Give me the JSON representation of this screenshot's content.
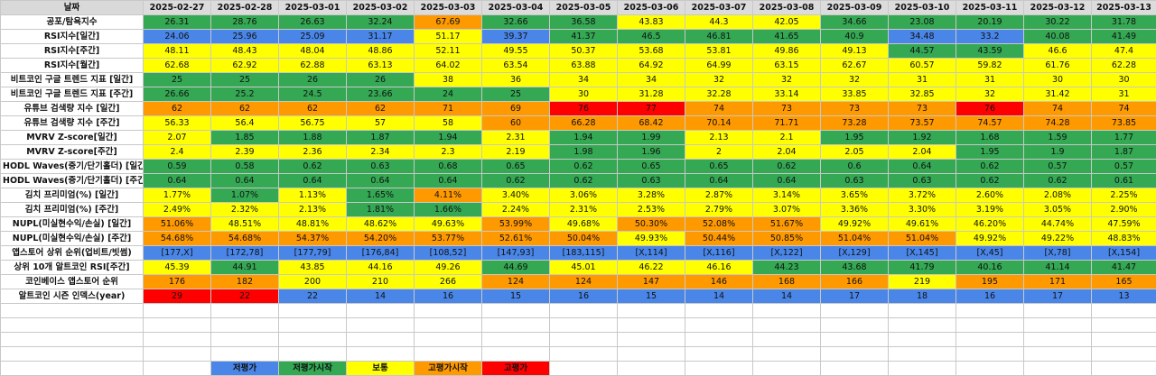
{
  "colors": {
    "blue": "#4a86e8",
    "green": "#34a853",
    "yellow": "#ffff00",
    "orange": "#ff9900",
    "red": "#ff0000"
  },
  "header": {
    "label": "날짜",
    "dates": [
      "2025-02-27",
      "2025-02-28",
      "2025-03-01",
      "2025-03-02",
      "2025-03-03",
      "2025-03-04",
      "2025-03-05",
      "2025-03-06",
      "2025-03-07",
      "2025-03-08",
      "2025-03-09",
      "2025-03-10",
      "2025-03-11",
      "2025-03-12",
      "2025-03-13"
    ]
  },
  "rows": [
    {
      "label": "공포/탐욕지수",
      "values": [
        "26.31",
        "28.76",
        "26.63",
        "32.24",
        "67.69",
        "32.66",
        "36.58",
        "43.83",
        "44.3",
        "42.05",
        "34.66",
        "23.08",
        "20.19",
        "30.22",
        "31.78"
      ],
      "colors": [
        "green",
        "green",
        "green",
        "green",
        "orange",
        "green",
        "green",
        "yellow",
        "yellow",
        "yellow",
        "green",
        "green",
        "green",
        "green",
        "green"
      ]
    },
    {
      "label": "RSI지수[일간]",
      "values": [
        "24.06",
        "25.96",
        "25.09",
        "31.17",
        "51.17",
        "39.37",
        "41.37",
        "46.5",
        "46.81",
        "41.65",
        "40.9",
        "34.48",
        "33.2",
        "40.08",
        "41.49"
      ],
      "colors": [
        "blue",
        "blue",
        "blue",
        "blue",
        "yellow",
        "blue",
        "green",
        "green",
        "green",
        "green",
        "green",
        "blue",
        "blue",
        "green",
        "green"
      ]
    },
    {
      "label": "RSI지수[주간]",
      "values": [
        "48.11",
        "48.43",
        "48.04",
        "48.86",
        "52.11",
        "49.55",
        "50.37",
        "53.68",
        "53.81",
        "49.86",
        "49.13",
        "44.57",
        "43.59",
        "46.6",
        "47.4"
      ],
      "colors": [
        "yellow",
        "yellow",
        "yellow",
        "yellow",
        "yellow",
        "yellow",
        "yellow",
        "yellow",
        "yellow",
        "yellow",
        "yellow",
        "green",
        "green",
        "yellow",
        "yellow"
      ]
    },
    {
      "label": "RSI지수[월간]",
      "values": [
        "62.68",
        "62.92",
        "62.88",
        "63.13",
        "64.02",
        "63.54",
        "63.88",
        "64.92",
        "64.99",
        "63.15",
        "62.67",
        "60.57",
        "59.82",
        "61.76",
        "62.28"
      ],
      "colors": [
        "yellow",
        "yellow",
        "yellow",
        "yellow",
        "yellow",
        "yellow",
        "yellow",
        "yellow",
        "yellow",
        "yellow",
        "yellow",
        "yellow",
        "yellow",
        "yellow",
        "yellow"
      ]
    },
    {
      "label": "비트코인 구글 트렌드 지표 [일간]",
      "values": [
        "25",
        "25",
        "26",
        "26",
        "38",
        "36",
        "34",
        "34",
        "32",
        "32",
        "32",
        "31",
        "31",
        "30",
        "30"
      ],
      "colors": [
        "green",
        "green",
        "green",
        "green",
        "yellow",
        "yellow",
        "yellow",
        "yellow",
        "yellow",
        "yellow",
        "yellow",
        "yellow",
        "yellow",
        "yellow",
        "yellow"
      ]
    },
    {
      "label": "비트코인 구글 트렌드 지표 [주간]",
      "values": [
        "26.66",
        "25.2",
        "24.5",
        "23.66",
        "24",
        "25",
        "30",
        "31.28",
        "32.28",
        "33.14",
        "33.85",
        "32.85",
        "32",
        "31.42",
        "31"
      ],
      "colors": [
        "green",
        "green",
        "green",
        "green",
        "green",
        "green",
        "yellow",
        "yellow",
        "yellow",
        "yellow",
        "yellow",
        "yellow",
        "yellow",
        "yellow",
        "yellow"
      ]
    },
    {
      "label": "유튜브 검색량 지수 [일간]",
      "values": [
        "62",
        "62",
        "62",
        "62",
        "71",
        "69",
        "76",
        "77",
        "74",
        "73",
        "73",
        "73",
        "76",
        "74",
        "74"
      ],
      "colors": [
        "orange",
        "orange",
        "orange",
        "orange",
        "orange",
        "orange",
        "red",
        "red",
        "orange",
        "orange",
        "orange",
        "orange",
        "red",
        "orange",
        "orange"
      ]
    },
    {
      "label": "유튜브 검색량 지수 [주간]",
      "values": [
        "56.33",
        "56.4",
        "56.75",
        "57",
        "58",
        "60",
        "66.28",
        "68.42",
        "70.14",
        "71.71",
        "73.28",
        "73.57",
        "74.57",
        "74.28",
        "73.85"
      ],
      "colors": [
        "yellow",
        "yellow",
        "yellow",
        "yellow",
        "yellow",
        "orange",
        "orange",
        "orange",
        "orange",
        "orange",
        "orange",
        "orange",
        "orange",
        "orange",
        "orange"
      ]
    },
    {
      "label": "MVRV Z-score[일간]",
      "values": [
        "2.07",
        "1.85",
        "1.88",
        "1.87",
        "1.94",
        "2.31",
        "1.94",
        "1.99",
        "2.13",
        "2.1",
        "1.95",
        "1.92",
        "1.68",
        "1.59",
        "1.77"
      ],
      "colors": [
        "yellow",
        "green",
        "green",
        "green",
        "green",
        "yellow",
        "green",
        "green",
        "yellow",
        "yellow",
        "green",
        "green",
        "green",
        "green",
        "green"
      ]
    },
    {
      "label": "MVRV Z-score[주간]",
      "values": [
        "2.4",
        "2.39",
        "2.36",
        "2.34",
        "2.3",
        "2.19",
        "1.98",
        "1.96",
        "2",
        "2.04",
        "2.05",
        "2.04",
        "1.95",
        "1.9",
        "1.87"
      ],
      "colors": [
        "yellow",
        "yellow",
        "yellow",
        "yellow",
        "yellow",
        "yellow",
        "green",
        "green",
        "yellow",
        "yellow",
        "yellow",
        "yellow",
        "green",
        "green",
        "green"
      ]
    },
    {
      "label": "HODL Waves(중기/단기홀더) [일간]",
      "values": [
        "0.59",
        "0.58",
        "0.62",
        "0.63",
        "0.68",
        "0.65",
        "0.62",
        "0.65",
        "0.65",
        "0.62",
        "0.6",
        "0.64",
        "0.62",
        "0.57",
        "0.57"
      ],
      "colors": [
        "green",
        "green",
        "green",
        "green",
        "green",
        "green",
        "green",
        "green",
        "green",
        "green",
        "green",
        "green",
        "green",
        "green",
        "green"
      ]
    },
    {
      "label": "HODL Waves(중기/단기홀더) [주간]",
      "values": [
        "0.64",
        "0.64",
        "0.64",
        "0.64",
        "0.64",
        "0.62",
        "0.62",
        "0.63",
        "0.64",
        "0.64",
        "0.63",
        "0.63",
        "0.62",
        "0.62",
        "0.61"
      ],
      "colors": [
        "green",
        "green",
        "green",
        "green",
        "green",
        "green",
        "green",
        "green",
        "green",
        "green",
        "green",
        "green",
        "green",
        "green",
        "green"
      ]
    },
    {
      "label": "김치 프리미엄(%) [일간]",
      "values": [
        "1.77%",
        "1.07%",
        "1.13%",
        "1.65%",
        "4.11%",
        "3.40%",
        "3.06%",
        "3.28%",
        "2.87%",
        "3.14%",
        "3.65%",
        "3.72%",
        "2.60%",
        "2.08%",
        "2.25%"
      ],
      "colors": [
        "yellow",
        "green",
        "yellow",
        "green",
        "orange",
        "yellow",
        "yellow",
        "yellow",
        "yellow",
        "yellow",
        "yellow",
        "yellow",
        "yellow",
        "yellow",
        "yellow"
      ]
    },
    {
      "label": "김치 프리미엄(%) [주간]",
      "values": [
        "2.49%",
        "2.32%",
        "2.13%",
        "1.81%",
        "1.66%",
        "2.24%",
        "2.31%",
        "2.53%",
        "2.79%",
        "3.07%",
        "3.36%",
        "3.30%",
        "3.19%",
        "3.05%",
        "2.90%"
      ],
      "colors": [
        "yellow",
        "yellow",
        "yellow",
        "green",
        "green",
        "yellow",
        "yellow",
        "yellow",
        "yellow",
        "yellow",
        "yellow",
        "yellow",
        "yellow",
        "yellow",
        "yellow"
      ]
    },
    {
      "label": "NUPL(미실현수익/손실) [일간]",
      "values": [
        "51.06%",
        "48.51%",
        "48.81%",
        "48.62%",
        "49.63%",
        "53.99%",
        "49.68%",
        "50.30%",
        "52.08%",
        "51.67%",
        "49.92%",
        "49.61%",
        "46.20%",
        "44.74%",
        "47.59%"
      ],
      "colors": [
        "orange",
        "yellow",
        "yellow",
        "yellow",
        "yellow",
        "orange",
        "yellow",
        "orange",
        "orange",
        "orange",
        "yellow",
        "yellow",
        "yellow",
        "yellow",
        "yellow"
      ]
    },
    {
      "label": "NUPL(미실현수익/손실) [주간]",
      "values": [
        "54.68%",
        "54.68%",
        "54.37%",
        "54.20%",
        "53.77%",
        "52.61%",
        "50.04%",
        "49.93%",
        "50.44%",
        "50.85%",
        "51.04%",
        "51.04%",
        "49.92%",
        "49.22%",
        "48.83%"
      ],
      "colors": [
        "orange",
        "orange",
        "orange",
        "orange",
        "orange",
        "orange",
        "orange",
        "yellow",
        "orange",
        "orange",
        "orange",
        "orange",
        "yellow",
        "yellow",
        "yellow"
      ]
    },
    {
      "label": "앱스토어 상위 순위(업비트/빗썸)",
      "values": [
        "[177,X]",
        "[172,78]",
        "[177,79]",
        "[176,84]",
        "[108,52]",
        "[147,93]",
        "[183,115]",
        "[X,114]",
        "[X,116]",
        "[X,122]",
        "[X,129]",
        "[X,145]",
        "[X,45]",
        "[X,78]",
        "[X,154]"
      ],
      "colors": [
        "blue",
        "blue",
        "blue",
        "blue",
        "blue",
        "blue",
        "blue",
        "blue",
        "blue",
        "blue",
        "blue",
        "blue",
        "blue",
        "blue",
        "blue"
      ]
    },
    {
      "label": "상위 10개 알트코인 RSI[주간]",
      "values": [
        "45.39",
        "44.91",
        "43.85",
        "44.16",
        "49.26",
        "44.69",
        "45.01",
        "46.22",
        "46.16",
        "44.23",
        "43.68",
        "41.79",
        "40.16",
        "41.14",
        "41.47"
      ],
      "colors": [
        "yellow",
        "green",
        "yellow",
        "yellow",
        "yellow",
        "green",
        "yellow",
        "yellow",
        "yellow",
        "green",
        "green",
        "green",
        "green",
        "green",
        "green"
      ]
    },
    {
      "label": "코인베이스 앱스토어 순위",
      "values": [
        "176",
        "182",
        "200",
        "210",
        "266",
        "124",
        "124",
        "147",
        "146",
        "168",
        "166",
        "219",
        "195",
        "171",
        "165"
      ],
      "colors": [
        "orange",
        "orange",
        "yellow",
        "yellow",
        "yellow",
        "orange",
        "orange",
        "orange",
        "orange",
        "orange",
        "orange",
        "yellow",
        "orange",
        "orange",
        "orange"
      ]
    },
    {
      "label": "알트코인 시즌 인덱스(year)",
      "values": [
        "29",
        "22",
        "22",
        "14",
        "16",
        "15",
        "16",
        "15",
        "14",
        "14",
        "17",
        "18",
        "16",
        "17",
        "13"
      ],
      "colors": [
        "red",
        "red",
        "blue",
        "blue",
        "blue",
        "blue",
        "blue",
        "blue",
        "blue",
        "blue",
        "blue",
        "blue",
        "blue",
        "blue",
        "blue"
      ]
    }
  ],
  "legend": [
    {
      "label": "저평가",
      "color": "blue"
    },
    {
      "label": "저평가시작",
      "color": "green"
    },
    {
      "label": "보통",
      "color": "yellow"
    },
    {
      "label": "고평가시작",
      "color": "orange"
    },
    {
      "label": "고평가",
      "color": "red"
    }
  ]
}
